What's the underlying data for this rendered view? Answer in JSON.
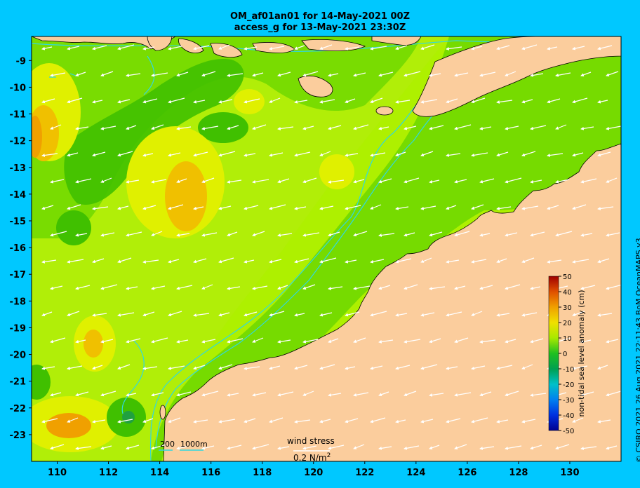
{
  "title": {
    "line1": "OM_af01an01 for 14-May-2021 00Z",
    "line2": "access_g for 13-May-2021 23:30Z"
  },
  "map": {
    "region": "North-west Australia",
    "lon_ticks": [
      "110",
      "112",
      "114",
      "116",
      "118",
      "120",
      "122",
      "124",
      "126",
      "128",
      "130"
    ],
    "lat_ticks": [
      "-9",
      "-10",
      "-11",
      "-12",
      "-13",
      "-14",
      "-15",
      "-16",
      "-17",
      "-18",
      "-19",
      "-20",
      "-21",
      "-22",
      "-23"
    ],
    "lon_range": [
      109,
      132
    ],
    "lat_range": [
      -24,
      -8.1
    ],
    "ocean_base_color": "#aef000",
    "land_color": "#fbcd9d",
    "contour_color": "#30d8e0"
  },
  "bathymetry_legend": {
    "label_200": "200",
    "label_1000": "1000m"
  },
  "wind_legend": {
    "label": "wind stress",
    "value": "0.2 N/m",
    "superscript": "2"
  },
  "colorbar": {
    "title": "non-tidal sea level anomaly (cm)",
    "ticks": [
      "50",
      "40",
      "30",
      "20",
      "10",
      "0",
      "-10",
      "-20",
      "-30",
      "-40",
      "-50"
    ],
    "colors": [
      "#0000a0",
      "#0030e0",
      "#0078f0",
      "#00b8d8",
      "#00b060",
      "#10c020",
      "#88e000",
      "#d8f000",
      "#f8c000",
      "#f08000",
      "#d83000",
      "#a00000"
    ]
  },
  "credit": "© CSIRO 2021  26 Aug 2021 22:11:43 BoM OceanMAPS v3"
}
